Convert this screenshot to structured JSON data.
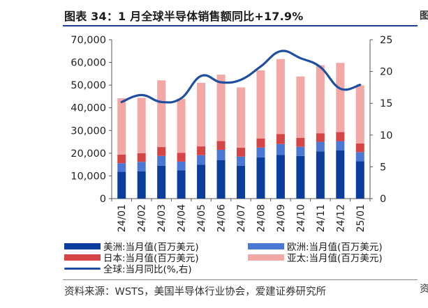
{
  "title": "图表 34：1 月全球半导体销售额同比+17.9%",
  "edge_text": [
    "图",
    "资"
  ],
  "source": "资料来源：WSTS，美国半导体行业协会，爱建证券研究所",
  "colors": {
    "americas": "#0a3d9c",
    "europe": "#4a78d4",
    "japan": "#d64545",
    "apac": "#f4a8a6",
    "global_line": "#1f4fa0"
  },
  "legend": [
    {
      "key": "americas",
      "label": "美洲:当月值(百万美元)",
      "type": "bar"
    },
    {
      "key": "europe",
      "label": "欧洲:当月值(百万美元)",
      "type": "bar"
    },
    {
      "key": "japan",
      "label": "日本:当月值(百万美元)",
      "type": "bar"
    },
    {
      "key": "apac",
      "label": "亚太:当月值(百万美元)",
      "type": "bar"
    },
    {
      "key": "global_line",
      "label": "全球:当月同比(%,右)",
      "type": "line"
    }
  ],
  "chart_data": {
    "type": "bar",
    "stacked": true,
    "categories": [
      "24/01",
      "24/02",
      "24/03",
      "24/04",
      "24/05",
      "24/06",
      "24/07",
      "24/08",
      "24/09",
      "24/10",
      "24/11",
      "24/12",
      "25/01"
    ],
    "series": [
      {
        "name": "美洲:当月值(百万美元)",
        "values": [
          11800,
          12000,
          14500,
          12500,
          14900,
          17000,
          14500,
          18200,
          19200,
          18800,
          20800,
          21300,
          16500
        ]
      },
      {
        "name": "欧洲:当月值(百万美元)",
        "values": [
          3800,
          4200,
          4300,
          3800,
          4200,
          4500,
          4000,
          4300,
          4800,
          4000,
          4200,
          4000,
          4000
        ]
      },
      {
        "name": "日本:当月值(百万美元)",
        "values": [
          3800,
          3800,
          3900,
          3900,
          3900,
          3900,
          3900,
          4000,
          4400,
          4000,
          3800,
          4000,
          3800
        ]
      },
      {
        "name": "亚太:当月值(百万美元)",
        "values": [
          24800,
          24400,
          29400,
          23800,
          28000,
          29200,
          26600,
          30000,
          33100,
          27000,
          30000,
          30500,
          25600
        ]
      },
      {
        "name": "全球:当月同比(%,右)",
        "axis": "right",
        "type": "line",
        "values": [
          15.2,
          16.3,
          15.2,
          15.8,
          19.3,
          18.3,
          18.7,
          20.8,
          23.2,
          22.1,
          20.7,
          17.3,
          17.9
        ]
      }
    ],
    "yleft": {
      "min": 0,
      "max": 70000,
      "ticks": [
        "0",
        "10,000",
        "20,000",
        "30,000",
        "40,000",
        "50,000",
        "60,000",
        "70,000"
      ]
    },
    "yright": {
      "min": 0,
      "max": 25,
      "ticks": [
        "0",
        "5",
        "10",
        "15",
        "20",
        "25"
      ]
    },
    "grid": false,
    "legend_position": "bottom"
  }
}
